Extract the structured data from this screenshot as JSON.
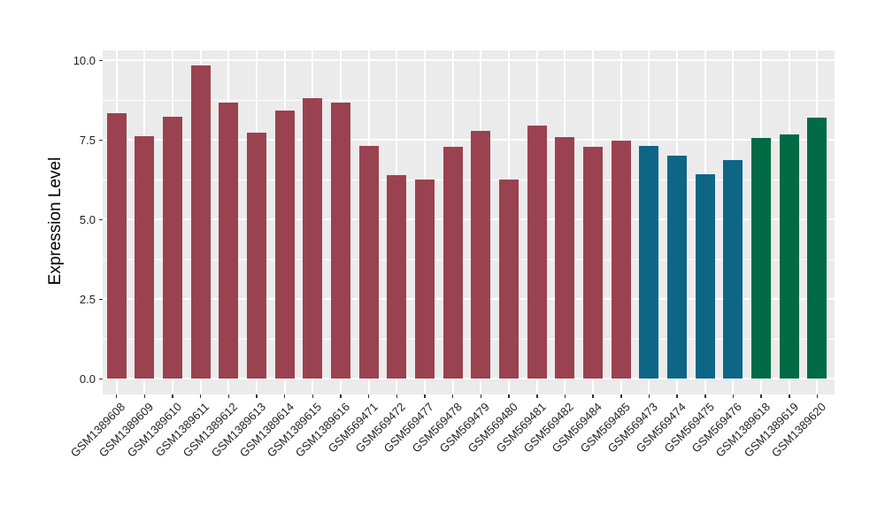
{
  "chart_data": {
    "type": "bar",
    "title": "",
    "xlabel": "",
    "ylabel": "Expression Level",
    "categories": [
      "GSM1389608",
      "GSM1389609",
      "GSM1389610",
      "GSM1389611",
      "GSM1389612",
      "GSM1389613",
      "GSM1389614",
      "GSM1389615",
      "GSM1389616",
      "GSM569471",
      "GSM569472",
      "GSM569477",
      "GSM569478",
      "GSM569479",
      "GSM569480",
      "GSM569481",
      "GSM569482",
      "GSM569484",
      "GSM569485",
      "GSM569473",
      "GSM569474",
      "GSM569475",
      "GSM569476",
      "GSM1389618",
      "GSM1389619",
      "GSM1389620"
    ],
    "values": [
      8.35,
      7.62,
      8.24,
      9.84,
      8.68,
      7.73,
      8.42,
      8.82,
      8.67,
      7.31,
      6.4,
      6.27,
      7.29,
      7.78,
      6.27,
      7.94,
      7.58,
      7.3,
      7.47,
      7.31,
      7.0,
      6.42,
      6.88,
      7.56,
      7.68,
      8.2
    ],
    "bar_colors": [
      "#9A4250",
      "#9A4250",
      "#9A4250",
      "#9A4250",
      "#9A4250",
      "#9A4250",
      "#9A4250",
      "#9A4250",
      "#9A4250",
      "#9A4250",
      "#9A4250",
      "#9A4250",
      "#9A4250",
      "#9A4250",
      "#9A4250",
      "#9A4250",
      "#9A4250",
      "#9A4250",
      "#9A4250",
      "#0E6687",
      "#0E6687",
      "#0E6687",
      "#0E6687",
      "#006B45",
      "#006B45",
      "#006B45"
    ],
    "group_palette": {
      "group1_maroon": "#9A4250",
      "group2_teal": "#0E6687",
      "group3_green": "#006B45"
    },
    "yticks": [
      0.0,
      2.5,
      5.0,
      7.5,
      10.0
    ],
    "ytick_labels": [
      "0.0",
      "2.5",
      "5.0",
      "7.5",
      "10.0"
    ],
    "minor_yticks": [
      1.25,
      3.75,
      6.25,
      8.75
    ],
    "ylim": [
      -0.49,
      10.31
    ],
    "grid": true,
    "legend": false,
    "panel_background": "#EBEBEB",
    "grid_color": "#FFFFFF",
    "tick_color": "#333333",
    "axis_text_color": "#1F1F1F"
  }
}
